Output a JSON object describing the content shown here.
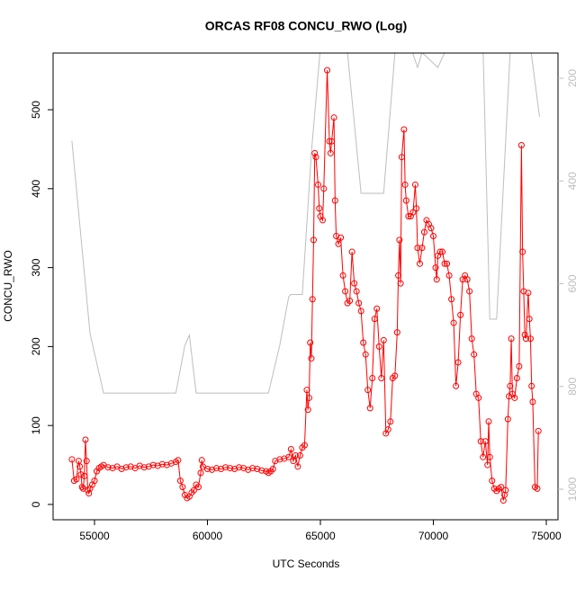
{
  "chart_data": {
    "type": "line",
    "title": "ORCAS RF08 CONCU_RWO (Log)",
    "x_label": "UTC Seconds",
    "y_label": "CONCU_RWO",
    "xlim": [
      53167,
      75518
    ],
    "xticks": [
      55000,
      60000,
      65000,
      70000,
      75000
    ],
    "ylim": [
      -19.4,
      571.8
    ],
    "yticks": [
      0,
      100,
      200,
      300,
      400,
      500
    ],
    "y2lim": [
      1059.5,
      151
    ],
    "y2ticks": [
      200,
      400,
      600,
      800,
      1000
    ],
    "series": [
      {
        "color": "#bebebe",
        "axis": "y2",
        "markers": false,
        "x": [
          54000,
          54800,
          55400,
          58600,
          59000,
          59200,
          59500,
          62700,
          63200,
          63300,
          63600,
          63700,
          64200,
          64600,
          65000,
          65800,
          66200,
          66800,
          67800,
          68300,
          69000,
          69300,
          69500,
          70200,
          70500,
          71000,
          72200,
          72500,
          72800,
          73400,
          74300,
          74700
        ],
        "values": [
          322,
          696,
          813,
          813,
          720,
          700,
          813,
          813,
          720,
          696,
          625,
          621,
          621,
          345,
          140,
          140,
          150,
          424,
          424,
          150,
          140,
          179,
          150,
          179,
          150,
          140,
          140,
          669,
          669,
          150,
          140,
          275
        ]
      },
      {
        "color": "#ff0000",
        "axis": "y",
        "markers": true,
        "x": [
          54000,
          54100,
          54200,
          54300,
          54350,
          54400,
          54450,
          54500,
          54550,
          54600,
          54650,
          54700,
          54750,
          54800,
          54900,
          55000,
          55100,
          55200,
          55300,
          55400,
          55600,
          55800,
          56000,
          56200,
          56400,
          56600,
          56800,
          57000,
          57200,
          57400,
          57600,
          57800,
          58000,
          58200,
          58400,
          58600,
          58700,
          58800,
          58900,
          59000,
          59100,
          59200,
          59300,
          59400,
          59500,
          59600,
          59700,
          59750,
          59800,
          60000,
          60200,
          60400,
          60600,
          60800,
          61000,
          61200,
          61400,
          61600,
          61800,
          62000,
          62200,
          62400,
          62600,
          62700,
          62800,
          62900,
          63000,
          63200,
          63400,
          63600,
          63700,
          63800,
          63900,
          64000,
          64100,
          64200,
          64300,
          64400,
          64450,
          64500,
          64550,
          64600,
          64650,
          64700,
          64750,
          64800,
          64900,
          64950,
          65000,
          65100,
          65150,
          65300,
          65400,
          65450,
          65500,
          65600,
          65650,
          65700,
          65800,
          65900,
          66000,
          66100,
          66200,
          66300,
          66400,
          66500,
          66600,
          66700,
          66800,
          66900,
          67000,
          67100,
          67200,
          67300,
          67400,
          67500,
          67600,
          67700,
          67800,
          67900,
          68000,
          68100,
          68200,
          68300,
          68400,
          68450,
          68500,
          68550,
          68600,
          68700,
          68750,
          68800,
          68900,
          69000,
          69100,
          69200,
          69250,
          69300,
          69400,
          69500,
          69600,
          69700,
          69800,
          69900,
          70000,
          70100,
          70150,
          70200,
          70300,
          70400,
          70500,
          70600,
          70700,
          70800,
          70900,
          71000,
          71100,
          71200,
          71300,
          71400,
          71500,
          71600,
          71700,
          71800,
          71900,
          72000,
          72100,
          72200,
          72300,
          72400,
          72450,
          72500,
          72600,
          72700,
          72800,
          72900,
          73000,
          73100,
          73150,
          73200,
          73300,
          73350,
          73400,
          73450,
          73500,
          73600,
          73700,
          73800,
          73900,
          73950,
          74000,
          74050,
          74100,
          74200,
          74250,
          74300,
          74350,
          74400,
          74500,
          74600,
          74650
        ],
        "values": [
          57,
          30,
          32,
          55,
          48,
          38,
          22,
          20,
          36,
          82,
          55,
          18,
          14,
          20,
          25,
          30,
          42,
          46,
          48,
          50,
          47,
          46,
          48,
          45,
          47,
          48,
          46,
          49,
          47,
          48,
          50,
          49,
          51,
          50,
          52,
          54,
          56,
          30,
          22,
          12,
          8,
          10,
          15,
          18,
          25,
          22,
          40,
          56,
          48,
          45,
          44,
          46,
          45,
          47,
          46,
          45,
          47,
          46,
          44,
          46,
          45,
          43,
          42,
          40,
          42,
          45,
          55,
          57,
          58,
          60,
          70,
          55,
          62,
          48,
          62,
          72,
          75,
          145,
          120,
          135,
          205,
          185,
          260,
          335,
          445,
          440,
          405,
          375,
          365,
          360,
          400,
          550,
          460,
          445,
          460,
          490,
          385,
          340,
          330,
          338,
          290,
          270,
          255,
          258,
          320,
          280,
          270,
          255,
          245,
          205,
          190,
          145,
          122,
          160,
          235,
          248,
          200,
          160,
          208,
          90,
          95,
          105,
          160,
          163,
          218,
          290,
          335,
          280,
          440,
          475,
          405,
          385,
          365,
          365,
          370,
          405,
          375,
          325,
          305,
          325,
          345,
          360,
          355,
          350,
          340,
          300,
          285,
          315,
          320,
          320,
          305,
          305,
          290,
          260,
          230,
          150,
          180,
          240,
          285,
          290,
          285,
          270,
          210,
          190,
          140,
          135,
          80,
          60,
          80,
          50,
          105,
          60,
          30,
          20,
          17,
          20,
          22,
          5,
          12,
          18,
          108,
          137,
          150,
          210,
          140,
          135,
          160,
          175,
          455,
          320,
          270,
          215,
          210,
          268,
          235,
          210,
          150,
          130,
          22,
          20,
          93
        ]
      }
    ]
  }
}
